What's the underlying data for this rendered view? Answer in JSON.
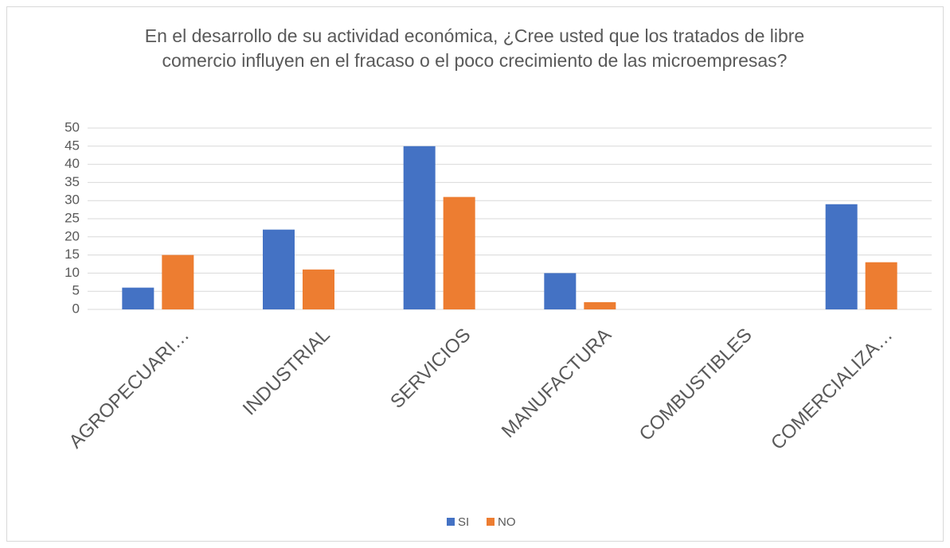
{
  "chart_data": {
    "type": "bar",
    "title": "En el desarrollo de su actividad económica, ¿Cree usted que los tratados de libre comercio influyen en el fracaso o el poco crecimiento de las microempresas?",
    "categories": [
      "AGROPECUARI…",
      "INDUSTRIAL",
      "SERVICIOS",
      "MANUFACTURA",
      "COMBUSTIBLES",
      "COMERCIALIZA…"
    ],
    "series": [
      {
        "name": "SI",
        "color": "#4472c4",
        "values": [
          6,
          22,
          45,
          10,
          0,
          29
        ]
      },
      {
        "name": "NO",
        "color": "#ed7d31",
        "values": [
          15,
          11,
          31,
          2,
          0,
          13
        ]
      }
    ],
    "ylim": [
      0,
      50
    ],
    "yticks": [
      0,
      5,
      10,
      15,
      20,
      25,
      30,
      35,
      40,
      45,
      50
    ],
    "grid": true,
    "legend": "bottom"
  }
}
